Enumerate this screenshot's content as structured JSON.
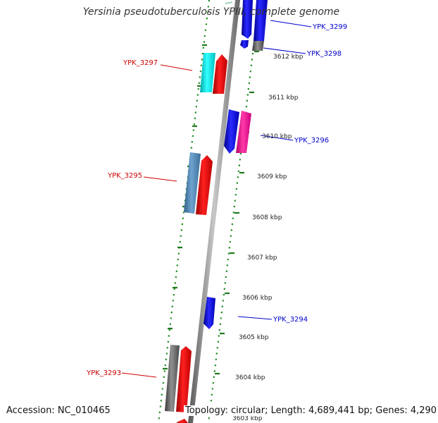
{
  "title": "Yersinia pseudotuberculosis YPIII, complete genome",
  "footer": {
    "accession": "Accession: NC_010465",
    "info": "Topology: circular; Length: 4,689,441 bp; Genes: 4,290"
  },
  "colors": {
    "forward_label": "#0000cc",
    "reverse_label": "#cc0000",
    "backbone": "#888888",
    "ruler": "#228b22"
  },
  "ticks": [
    {
      "label": "3612 kbp"
    },
    {
      "label": "3611 kbp"
    },
    {
      "label": "3610 kbp"
    },
    {
      "label": "3609 kbp"
    },
    {
      "label": "3608 kbp"
    },
    {
      "label": "3607 kbp"
    },
    {
      "label": "3606 kbp"
    },
    {
      "label": "3605 kbp"
    },
    {
      "label": "3604 kbp"
    },
    {
      "label": "3603 kbp"
    }
  ],
  "gene_labels": [
    {
      "name": "YPK_3299",
      "strand": "forward"
    },
    {
      "name": "YPK_3298",
      "strand": "forward"
    },
    {
      "name": "YPK_3297",
      "strand": "reverse"
    },
    {
      "name": "YPK_3296",
      "strand": "forward"
    },
    {
      "name": "YPK_3295",
      "strand": "reverse"
    },
    {
      "name": "YPK_3294",
      "strand": "forward"
    },
    {
      "name": "YPK_3293",
      "strand": "reverse"
    }
  ]
}
